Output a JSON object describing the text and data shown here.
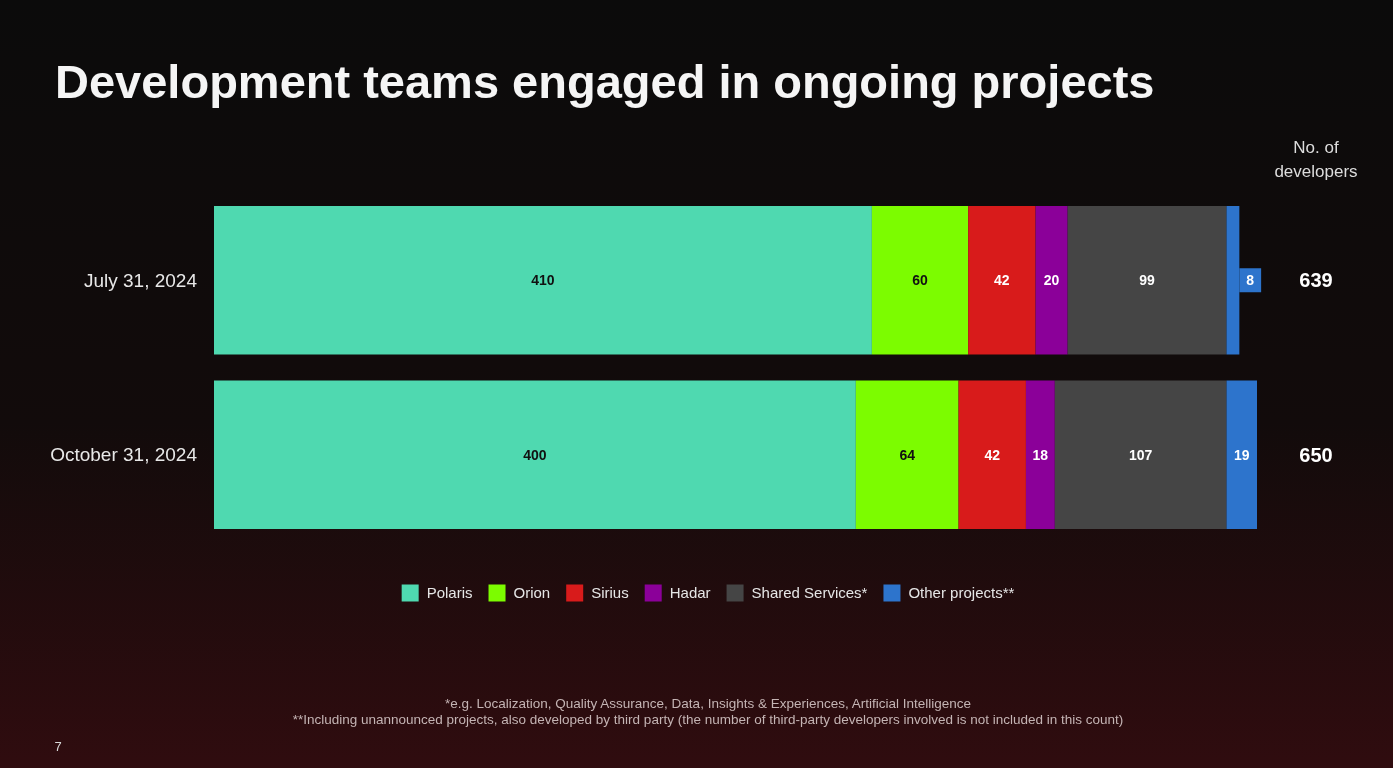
{
  "chart_data": {
    "type": "bar",
    "orientation": "horizontal",
    "stacked": true,
    "title": "Development teams engaged in ongoing projects",
    "categories": [
      "July 31, 2024",
      "October 31, 2024"
    ],
    "series": [
      {
        "name": "Polaris",
        "color": "#4fd9b0",
        "values": [
          410,
          400
        ]
      },
      {
        "name": "Orion",
        "color": "#7cfc00",
        "values": [
          60,
          64
        ]
      },
      {
        "name": "Sirius",
        "color": "#d81b1b",
        "values": [
          42,
          42
        ]
      },
      {
        "name": "Hadar",
        "color": "#8b0099",
        "values": [
          20,
          18
        ]
      },
      {
        "name": "Shared Services*",
        "color": "#454545",
        "values": [
          99,
          107
        ]
      },
      {
        "name": "Other projects**",
        "color": "#2d74cc",
        "values": [
          8,
          19
        ]
      }
    ],
    "data_labels": true,
    "totals": [
      "639",
      "650"
    ],
    "legend": "bottom",
    "annotations": [
      "No. of developers",
      "*e.g. Localization, Quality Assurance, Data, Insights & Experiences, Artificial Intelligence",
      "**Including unannounced projects, also developed by third party (the number of third-party developers involved is not included in this count)",
      "7"
    ]
  }
}
